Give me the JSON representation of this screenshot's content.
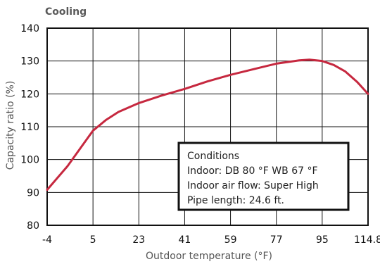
{
  "chart_data": {
    "type": "line",
    "title": "Cooling",
    "xlabel": "Outdoor temperature (°F)",
    "ylabel": "Capacity ratio (%)",
    "x_ticks": [
      -4,
      5,
      23,
      41,
      59,
      77,
      95,
      114.8
    ],
    "x_tick_labels": [
      "-4",
      "5",
      "23",
      "41",
      "59",
      "77",
      "95",
      "114.8"
    ],
    "y_ticks": [
      80,
      90,
      100,
      110,
      120,
      130,
      140
    ],
    "y_tick_labels": [
      "80",
      "90",
      "100",
      "110",
      "120",
      "130",
      "140"
    ],
    "ylim": [
      80,
      140
    ],
    "grid": true,
    "colors": {
      "line": "#c6283f",
      "grid": "#111111",
      "frame": "#111111"
    },
    "series": [
      {
        "values": [
          {
            "x": -4,
            "y": 90.8
          },
          {
            "x": 0,
            "y": 98
          },
          {
            "x": 5,
            "y": 108.8
          },
          {
            "x": 10,
            "y": 112
          },
          {
            "x": 15,
            "y": 114.5
          },
          {
            "x": 23,
            "y": 117.2
          },
          {
            "x": 32,
            "y": 119.5
          },
          {
            "x": 41,
            "y": 121.5
          },
          {
            "x": 50,
            "y": 123.8
          },
          {
            "x": 59,
            "y": 125.8
          },
          {
            "x": 68,
            "y": 127.5
          },
          {
            "x": 77,
            "y": 129.2
          },
          {
            "x": 86,
            "y": 130.2
          },
          {
            "x": 90,
            "y": 130.4
          },
          {
            "x": 95,
            "y": 130.0
          },
          {
            "x": 100,
            "y": 128.8
          },
          {
            "x": 105,
            "y": 126.8
          },
          {
            "x": 110,
            "y": 123.7
          },
          {
            "x": 114.8,
            "y": 120.0
          }
        ]
      }
    ],
    "annotation_box": {
      "lines": [
        "Conditions",
        "Indoor: DB 80 °F    WB 67 °F",
        "Indoor air flow: Super High",
        "Pipe length: 24.6 ft."
      ]
    }
  }
}
